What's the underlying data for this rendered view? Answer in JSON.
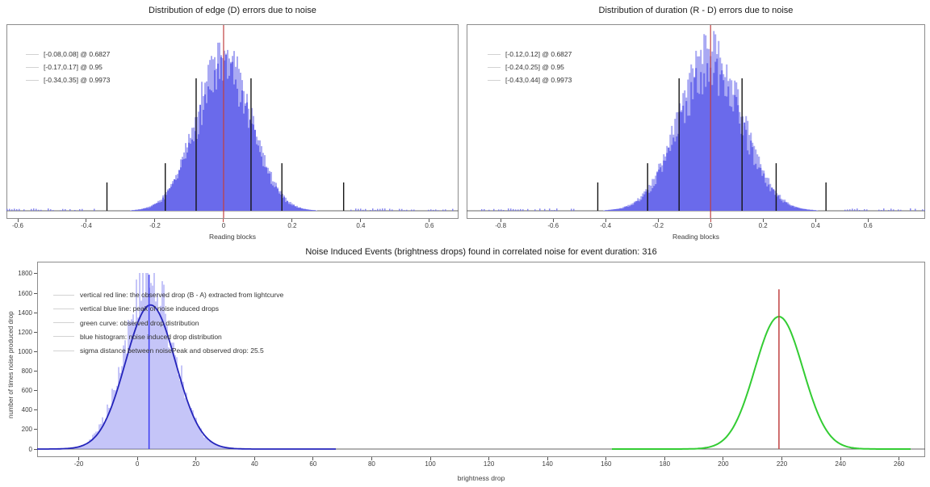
{
  "page": {
    "background": "#ffffff"
  },
  "colors": {
    "histogram_fill": "#6a6aeb",
    "histogram_fringe": "#a9a9f3",
    "histogram_faint": "rgba(140,140,242,0.5)",
    "red_line": "#c04040",
    "black_marker": "#141414",
    "dark_blue_curve": "#2424bb",
    "blue_vline": "#3d3df2",
    "green_curve": "#33cc33",
    "axis_line": "#666666",
    "frame_border": "#8c8c8c",
    "tick_text": "#3d3d3d",
    "legend_text": "#333333",
    "legend_sample": "#d2d2d2",
    "title_text": "#1a1a1a"
  },
  "chart_data": [
    {
      "id": "edge_error_distribution",
      "type": "bar",
      "subtype": "noisy-gaussian-histogram",
      "title": "Distribution of edge (D) errors due to noise",
      "xlabel": "Reading blocks",
      "xlim": [
        -0.633,
        0.685
      ],
      "x_ticks": [
        -0.6,
        -0.4,
        -0.2,
        0,
        0.2,
        0.4,
        0.6
      ],
      "x_tick_labels": [
        "-0.6",
        "-0.4",
        "-0.2",
        "0",
        "0.2",
        "0.4",
        "0.6"
      ],
      "grid": false,
      "legend_position": "upper-left",
      "distribution": {
        "center": 0,
        "sigma": 0.08,
        "peak_frac": 0.88
      },
      "center_line_x": 0,
      "sigma_markers": [
        {
          "range": [
            -0.08,
            0.08
          ],
          "confidence": "0.6827",
          "height_frac": 0.71
        },
        {
          "range": [
            -0.17,
            0.17
          ],
          "confidence": "0.95",
          "height_frac": 0.255
        },
        {
          "range": [
            -0.34,
            0.35
          ],
          "confidence": "0.9973",
          "height_frac": 0.152
        }
      ],
      "legend_items": [
        "[-0.08,0.08] @ 0.6827",
        "[-0.17,0.17] @ 0.95",
        "[-0.34,0.35] @ 0.9973"
      ]
    },
    {
      "id": "duration_error_distribution",
      "type": "bar",
      "subtype": "noisy-gaussian-histogram",
      "title": "Distribution of duration (R - D) errors due to noise",
      "xlabel": "Reading blocks",
      "xlim": [
        -0.93,
        0.818
      ],
      "x_ticks": [
        -0.8,
        -0.6,
        -0.4,
        -0.2,
        0,
        0.2,
        0.4,
        0.6
      ],
      "x_tick_labels": [
        "-0.8",
        "-0.6",
        "-0.4",
        "-0.2",
        "0",
        "0.2",
        "0.4",
        "0.6"
      ],
      "grid": false,
      "legend_position": "upper-left",
      "distribution": {
        "center": 0,
        "sigma": 0.12,
        "peak_frac": 0.9
      },
      "center_line_x": 0,
      "sigma_markers": [
        {
          "range": [
            -0.12,
            0.12
          ],
          "confidence": "0.6827",
          "height_frac": 0.71
        },
        {
          "range": [
            -0.24,
            0.25
          ],
          "confidence": "0.95",
          "height_frac": 0.255
        },
        {
          "range": [
            -0.43,
            0.44
          ],
          "confidence": "0.9973",
          "height_frac": 0.152
        }
      ],
      "legend_items": [
        "[-0.12,0.12] @ 0.6827",
        "[-0.24,0.25] @ 0.95",
        "[-0.43,0.44] @ 0.9973"
      ]
    },
    {
      "id": "noise_induced_events",
      "type": "bar",
      "subtype": "histogram-with-curves",
      "title": "Noise Induced Events (brightness drops) found in correlated noise for event duration: 316",
      "xlabel": "brightness drop",
      "ylabel": "number of times noise produced drop",
      "xlim": [
        -34.2,
        268.9
      ],
      "ylim": [
        0,
        1924
      ],
      "x_ticks": [
        -20,
        0,
        20,
        40,
        60,
        80,
        100,
        120,
        140,
        160,
        180,
        200,
        220,
        240,
        260
      ],
      "x_tick_labels": [
        "-20",
        "0",
        "20",
        "40",
        "60",
        "80",
        "100",
        "120",
        "140",
        "160",
        "180",
        "200",
        "220",
        "240",
        "260"
      ],
      "y_ticks": [
        0,
        200,
        400,
        600,
        800,
        1000,
        1200,
        1400,
        1600,
        1800
      ],
      "y_tick_labels": [
        "0",
        "200",
        "400",
        "600",
        "800",
        "1000",
        "1200",
        "1400",
        "1600",
        "1800"
      ],
      "grid": false,
      "legend_position": "upper-left",
      "noise_histogram": {
        "center": 4,
        "sigma": 8.4,
        "peak": 1750
      },
      "noise_fit_curve": {
        "center": 4.5,
        "sigma": 8.5,
        "peak": 1480,
        "x_range": [
          -34.2,
          68
        ]
      },
      "observed_curve": {
        "center": 219,
        "sigma": 8.2,
        "peak": 1360,
        "x_range": [
          162,
          264
        ]
      },
      "noise_peak_line": {
        "x": 4,
        "top": 1790
      },
      "observed_drop_line": {
        "x": 219,
        "top": 1640
      },
      "sigma_distance": "25.5",
      "event_duration": "316",
      "legend_items": [
        "vertical red line: the observed drop (B - A) extracted from lightcurve",
        "vertical blue line: peak of noise induced drops",
        "green curve: observed drop distribution",
        "blue histogram: noise induced drop distribution",
        "sigma distance between noisePeak and observed drop: 25.5"
      ]
    }
  ]
}
